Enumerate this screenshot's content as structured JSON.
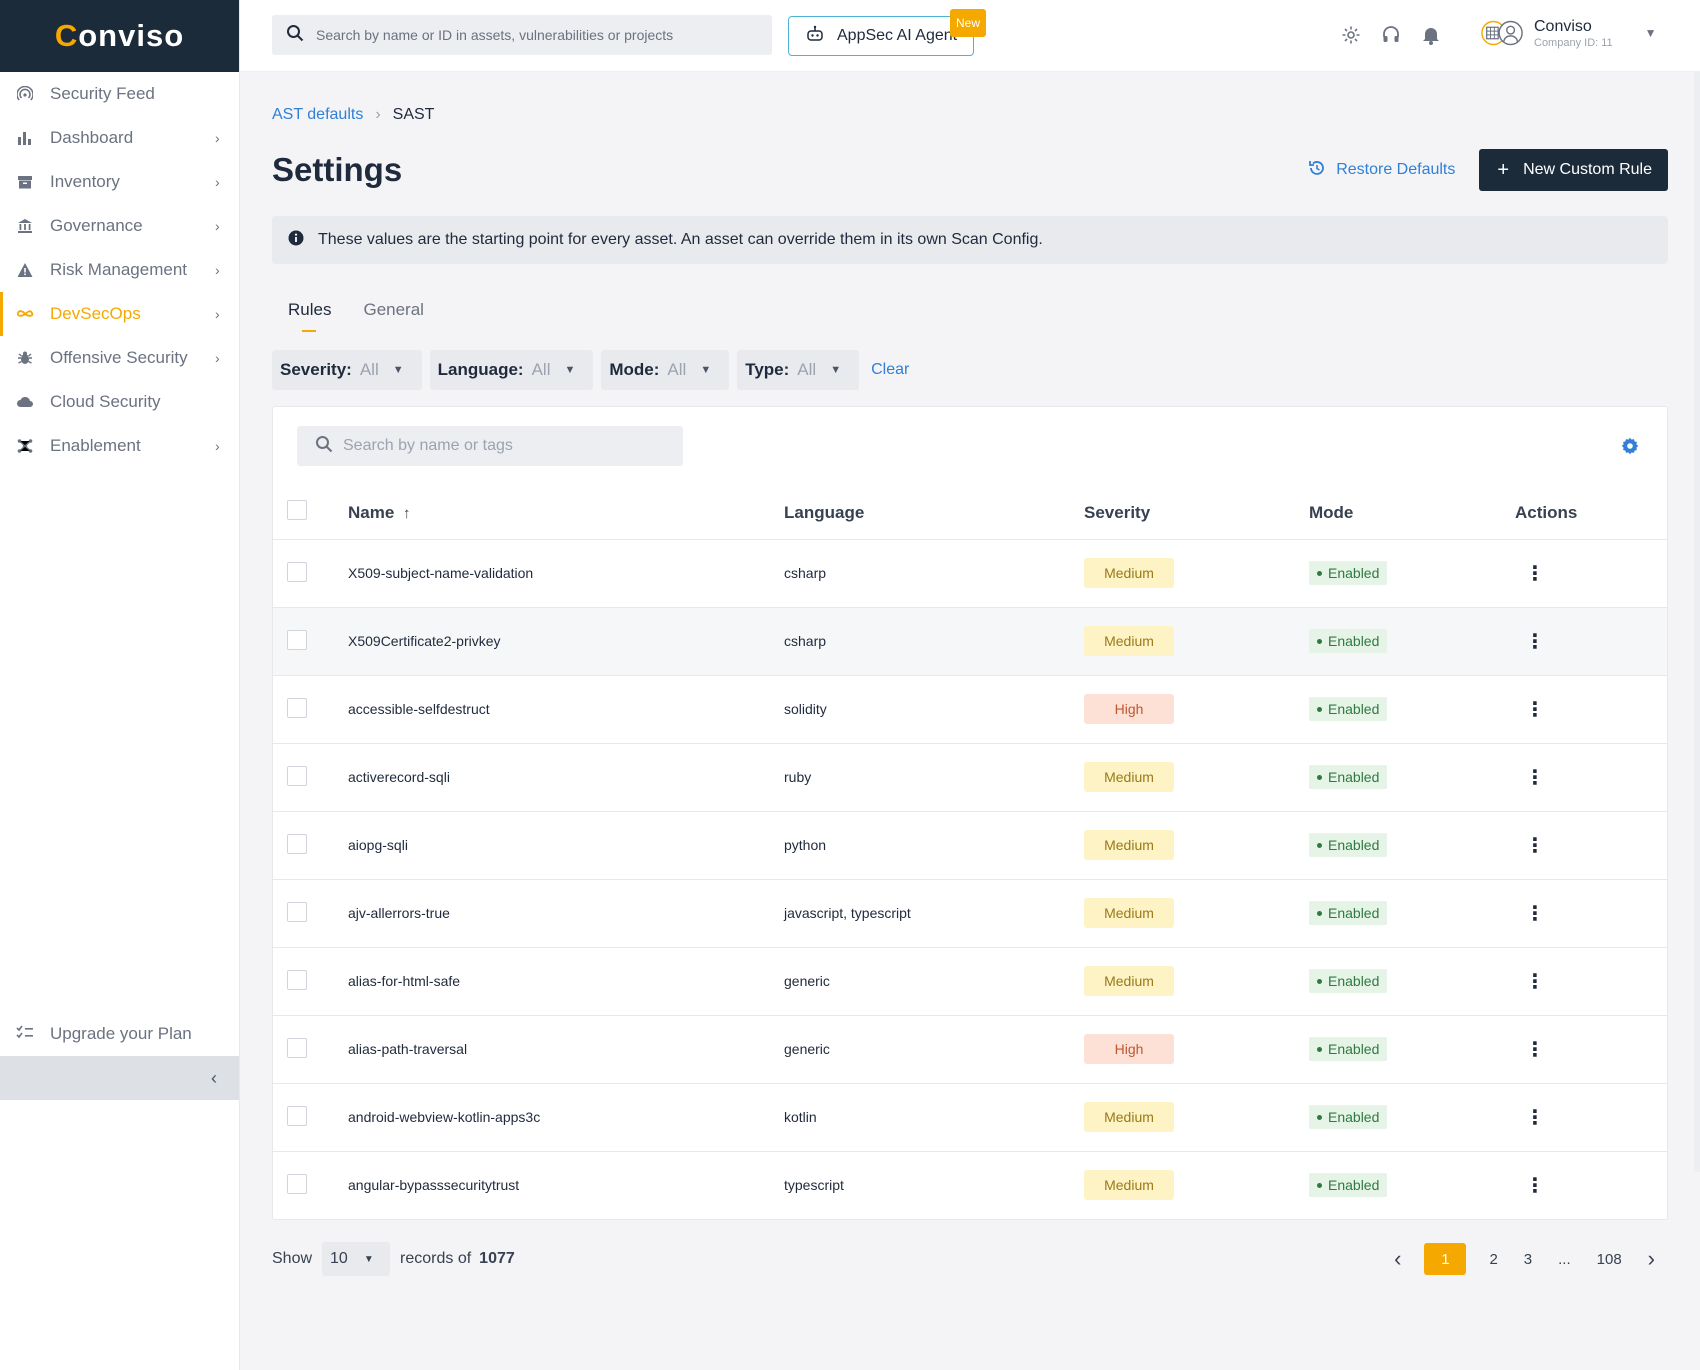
{
  "brand": {
    "name_prefix": "C",
    "name_rest": "onviso"
  },
  "sidebar": {
    "items": [
      {
        "label": "Security Feed",
        "icon": "rss-icon",
        "chevron": false
      },
      {
        "label": "Dashboard",
        "icon": "bar-chart-icon",
        "chevron": true
      },
      {
        "label": "Inventory",
        "icon": "archive-icon",
        "chevron": true
      },
      {
        "label": "Governance",
        "icon": "bank-icon",
        "chevron": true
      },
      {
        "label": "Risk Management",
        "icon": "warning-icon",
        "chevron": true
      },
      {
        "label": "DevSecOps",
        "icon": "infinity-icon",
        "chevron": true,
        "active": true
      },
      {
        "label": "Offensive Security",
        "icon": "bug-icon",
        "chevron": true
      },
      {
        "label": "Cloud Security",
        "icon": "cloud-icon",
        "chevron": false
      },
      {
        "label": "Enablement",
        "icon": "network-icon",
        "chevron": true
      }
    ],
    "upgrade_label": "Upgrade your Plan"
  },
  "topbar": {
    "search_placeholder": "Search by name or ID in assets, vulnerabilities or projects",
    "ai_button_label": "AppSec AI Agent",
    "new_badge": "New",
    "user_name": "Conviso",
    "company_id": "Company ID: 11"
  },
  "breadcrumb": {
    "parent": "AST defaults",
    "current": "SAST"
  },
  "page": {
    "title": "Settings",
    "restore_label": "Restore Defaults",
    "new_rule_label": "New Custom Rule",
    "info_text": "These values are the starting point for every asset. An asset can override them in its own Scan Config."
  },
  "tabs": [
    {
      "label": "Rules",
      "active": true
    },
    {
      "label": "General",
      "active": false
    }
  ],
  "filters": [
    {
      "label": "Severity:",
      "value": "All"
    },
    {
      "label": "Language:",
      "value": "All"
    },
    {
      "label": "Mode:",
      "value": "All"
    },
    {
      "label": "Type:",
      "value": "All"
    }
  ],
  "clear_label": "Clear",
  "table": {
    "search_placeholder": "Search by name or tags",
    "headers": {
      "name": "Name",
      "language": "Language",
      "severity": "Severity",
      "mode": "Mode",
      "actions": "Actions"
    },
    "rows": [
      {
        "name": "X509-subject-name-validation",
        "language": "csharp",
        "severity": "Medium",
        "mode": "Enabled"
      },
      {
        "name": "X509Certificate2-privkey",
        "language": "csharp",
        "severity": "Medium",
        "mode": "Enabled"
      },
      {
        "name": "accessible-selfdestruct",
        "language": "solidity",
        "severity": "High",
        "mode": "Enabled"
      },
      {
        "name": "activerecord-sqli",
        "language": "ruby",
        "severity": "Medium",
        "mode": "Enabled"
      },
      {
        "name": "aiopg-sqli",
        "language": "python",
        "severity": "Medium",
        "mode": "Enabled"
      },
      {
        "name": "ajv-allerrors-true",
        "language": "javascript, typescript",
        "severity": "Medium",
        "mode": "Enabled"
      },
      {
        "name": "alias-for-html-safe",
        "language": "generic",
        "severity": "Medium",
        "mode": "Enabled"
      },
      {
        "name": "alias-path-traversal",
        "language": "generic",
        "severity": "High",
        "mode": "Enabled"
      },
      {
        "name": "android-webview-kotlin-apps3c",
        "language": "kotlin",
        "severity": "Medium",
        "mode": "Enabled"
      },
      {
        "name": "angular-bypasssecuritytrust",
        "language": "typescript",
        "severity": "Medium",
        "mode": "Enabled"
      }
    ]
  },
  "footer": {
    "show_label": "Show",
    "page_size": "10",
    "records_label": "records of",
    "total": "1077",
    "pages": [
      "1",
      "2",
      "3",
      "...",
      "108"
    ],
    "current_page": "1"
  },
  "colors": {
    "accent": "#f5a800",
    "brand_dark": "#1c2b3a",
    "link": "#2f80d6"
  }
}
